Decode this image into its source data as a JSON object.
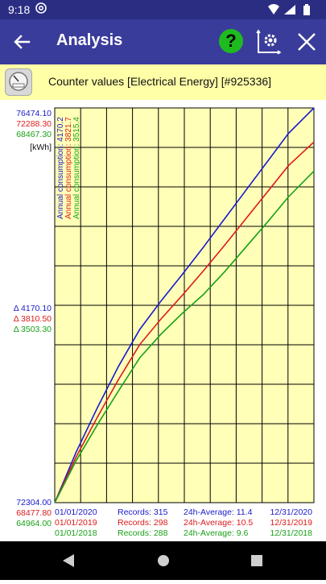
{
  "status": {
    "time": "9:18"
  },
  "appbar": {
    "title": "Analysis",
    "help_label": "?"
  },
  "chart_header": {
    "title": "Counter values [Electrical Energy] [#925336]"
  },
  "colors": {
    "s2020": "#1a1acc",
    "s2019": "#dd1a1a",
    "s2018": "#18a018",
    "plot_bg": "#ffffb8",
    "appbar": "#3a3c9b"
  },
  "chart_data": {
    "type": "line",
    "ylabel": "[kWh]",
    "ymax_labels": [
      "76474.10",
      "72288.30",
      "68467.30"
    ],
    "ymin_labels": [
      "72304.00",
      "68477.80",
      "64964.00"
    ],
    "delta_labels": [
      "Δ 4170.10",
      "Δ 3810.50",
      "Δ 3503.30"
    ],
    "annual_labels": [
      "Annual consumption: 4170.2",
      "Annual consumption: 3821.7",
      "Annual consumption: 3515.4"
    ],
    "start_dates": [
      "01/01/2020",
      "01/01/2019",
      "01/01/2018"
    ],
    "end_dates": [
      "12/31/2020",
      "12/31/2019",
      "12/31/2018"
    ],
    "records": [
      "Records: 315",
      "Records: 298",
      "Records: 288"
    ],
    "averages": [
      "24h-Average: 11.4",
      "24h-Average: 10.5",
      "24h-Average: 9.6"
    ],
    "x": [
      0,
      30,
      60,
      90,
      120,
      150,
      180,
      210,
      240,
      270,
      300,
      330,
      366
    ],
    "series": [
      {
        "values": [
          0,
          530,
          1000,
          1440,
          1830,
          2130,
          2410,
          2700,
          3000,
          3300,
          3600,
          3900,
          4170.1
        ]
      },
      {
        "values": [
          0,
          480,
          900,
          1300,
          1670,
          1940,
          2190,
          2450,
          2720,
          3000,
          3280,
          3560,
          3810.5
        ]
      },
      {
        "values": [
          0,
          440,
          820,
          1180,
          1530,
          1780,
          2000,
          2200,
          2440,
          2700,
          2960,
          3230,
          3503.3
        ]
      }
    ],
    "grid": true
  }
}
